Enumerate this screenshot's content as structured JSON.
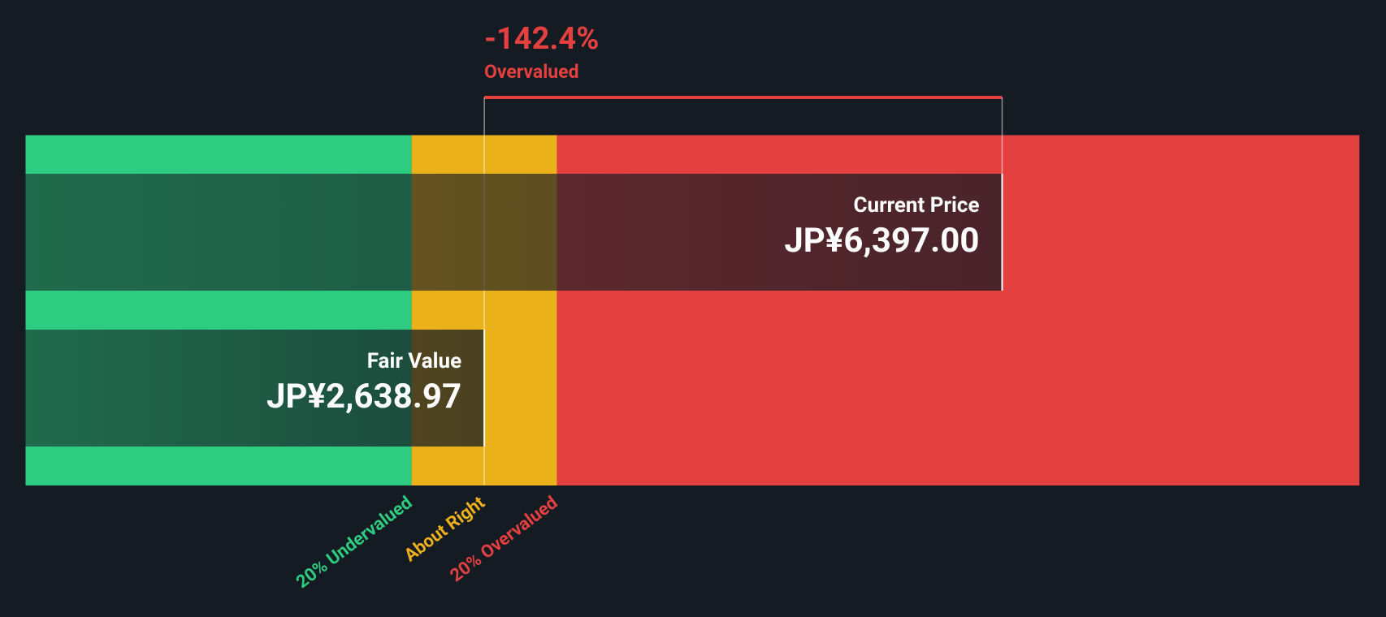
{
  "chart_data": {
    "type": "valuation",
    "difference": "-142.4%",
    "verdict": "Overvalued",
    "verdict_color": "#e44040",
    "series": [
      {
        "name": "Current Price",
        "values": [
          6397
        ],
        "value_labels": [
          "JP¥6,397.00"
        ]
      },
      {
        "name": "Fair Value",
        "values": [
          2638.97
        ],
        "value_labels": [
          "JP¥2,638.97"
        ]
      }
    ],
    "zones": [
      {
        "name": "20% Undervalued",
        "color": "#2ecc80"
      },
      {
        "name": "About Right",
        "color": "#ebb11a"
      },
      {
        "name": "20% Overvalued",
        "color": "#e44040"
      }
    ],
    "xlim": [
      -690,
      8990
    ]
  }
}
